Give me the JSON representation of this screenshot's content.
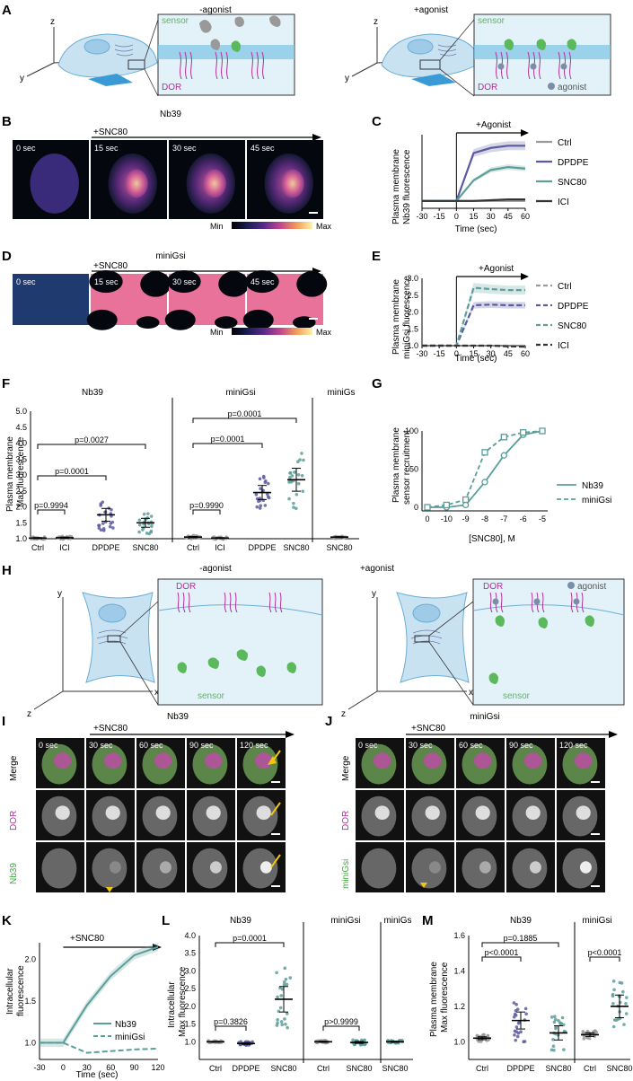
{
  "panel_letters": [
    "A",
    "B",
    "C",
    "D",
    "E",
    "F",
    "G",
    "H",
    "I",
    "J",
    "K",
    "L",
    "M"
  ],
  "colors": {
    "ctrl": "#9a9a9a",
    "dpdpe": "#5a5aa0",
    "snc80": "#5a9e9a",
    "ici": "#333333",
    "sensor_green": "#5cb85c",
    "dor_magenta": "#b0309a",
    "cell_blue": "#c8e2f2",
    "membrane_band": "#7cc3e6"
  },
  "A": {
    "left_title": "-agonist",
    "right_title": "+agonist",
    "sensor_label": "sensor",
    "dor_label": "DOR",
    "agonist_label": "agonist",
    "axis_z": "z",
    "axis_x": "x",
    "axis_y": "y"
  },
  "B": {
    "title": "Nb39",
    "treatment": "+SNC80",
    "times": [
      "0 sec",
      "15 sec",
      "30 sec",
      "45 sec"
    ],
    "scale_min": "Min",
    "scale_max": "Max"
  },
  "C": {
    "annotation": "+Agonist",
    "ylabel1": "Plasma membrane",
    "ylabel2": "Nb39 fluorescence",
    "xlabel": "Time (sec)",
    "xticks": [
      "-30",
      "-15",
      "0",
      "15",
      "30",
      "45",
      "60"
    ]
  },
  "D": {
    "title": "miniGsi",
    "treatment": "+SNC80",
    "times": [
      "0 sec",
      "15 sec",
      "30 sec",
      "45 sec"
    ],
    "scale_min": "Min",
    "scale_max": "Max"
  },
  "E": {
    "annotation": "+Agonist",
    "ylabel1": "Plasma membrane",
    "ylabel2": "miniGsi fluorescence",
    "xlabel": "Time (sec)",
    "xticks": [
      "-30",
      "-15",
      "0",
      "15",
      "30",
      "45",
      "60"
    ]
  },
  "F": {
    "ylabel1": "Plasma membrane",
    "ylabel2": "Max fluorescence",
    "groups": [
      "Nb39",
      "miniGsi",
      "miniGs"
    ],
    "pvalues": [
      "p=0.9994",
      "p=0.0001",
      "p=0.0027",
      "p=0.9990",
      "p=0.0001",
      "p=0.0001"
    ]
  },
  "G": {
    "ylabel1": "Plasma membrane",
    "ylabel2": "sensor recruitment",
    "xlabel": "[SNC80], M",
    "xticks": [
      "0",
      "-10",
      "-9",
      "-8",
      "-7",
      "-6",
      "-5"
    ]
  },
  "H": {
    "left_title": "-agonist",
    "right_title": "+agonist",
    "dor_label": "DOR",
    "sensor_label": "sensor",
    "agonist_label": "agonist",
    "axis_y": "y",
    "axis_x": "x",
    "axis_z": "z"
  },
  "I": {
    "title": "Nb39",
    "treatment": "+SNC80",
    "times": [
      "0 sec",
      "30 sec",
      "60 sec",
      "90 sec",
      "120 sec"
    ],
    "rows": [
      "Merge",
      "DOR",
      "Nb39"
    ]
  },
  "J": {
    "title": "miniGsi",
    "treatment": "+SNC80",
    "times": [
      "0 sec",
      "30 sec",
      "60 sec",
      "90 sec",
      "120 sec"
    ],
    "rows": [
      "Merge",
      "DOR",
      "miniGsi"
    ]
  },
  "K": {
    "treatment": "+SNC80",
    "ylabel1": "Intracellular",
    "ylabel2": "fluorescence",
    "xlabel": "Time (sec)",
    "xticks": [
      "-30",
      "0",
      "30",
      "60",
      "90",
      "120"
    ]
  },
  "L": {
    "ylabel1": "Intracellular",
    "ylabel2": "Max fluorescence",
    "groups": [
      "Nb39",
      "miniGsi",
      "miniGs"
    ],
    "pvalues": [
      "p=0.0001",
      "p=0.3826",
      "p>0.9999"
    ]
  },
  "M": {
    "ylabel1": "Plasma membrane",
    "ylabel2": "Max fluorescence",
    "groups": [
      "Nb39",
      "miniGsi"
    ],
    "pvalues": [
      "p=0.1885",
      "p<0.0001",
      "p<0.0001"
    ]
  },
  "chart_data": [
    {
      "panel": "C",
      "type": "line",
      "xlabel": "Time (sec)",
      "ylabel": "Plasma membrane Nb39 fluorescence",
      "xlim": [
        -30,
        60
      ],
      "x": [
        -30,
        -15,
        0,
        15,
        30,
        45,
        60
      ],
      "series": [
        {
          "name": "Ctrl",
          "values": [
            1.0,
            1.0,
            1.0,
            1.0,
            1.0,
            1.0,
            1.0
          ]
        },
        {
          "name": "DPDPE",
          "values": [
            1.0,
            1.0,
            1.0,
            1.65,
            1.72,
            1.75,
            1.75
          ]
        },
        {
          "name": "SNC80",
          "values": [
            1.0,
            1.0,
            1.0,
            1.28,
            1.42,
            1.46,
            1.44
          ]
        },
        {
          "name": "ICI",
          "values": [
            1.0,
            1.0,
            1.0,
            1.0,
            1.01,
            1.02,
            1.02
          ]
        }
      ]
    },
    {
      "panel": "E",
      "type": "line",
      "xlabel": "Time (sec)",
      "ylabel": "Plasma membrane miniGsi fluorescence",
      "xlim": [
        -30,
        60
      ],
      "ylim": [
        1.0,
        3.0
      ],
      "yticks": [
        "1.0",
        "1.5",
        "2.0",
        "2.5",
        "3.0"
      ],
      "x": [
        -30,
        -15,
        0,
        15,
        30,
        45,
        60
      ],
      "series": [
        {
          "name": "Ctrl",
          "values": [
            1.0,
            1.0,
            1.0,
            1.0,
            1.0,
            1.0,
            1.0
          ]
        },
        {
          "name": "DPDPE",
          "values": [
            1.0,
            1.0,
            1.0,
            2.2,
            2.22,
            2.2,
            2.2
          ]
        },
        {
          "name": "SNC80",
          "values": [
            1.0,
            1.0,
            1.0,
            2.72,
            2.68,
            2.65,
            2.65
          ]
        },
        {
          "name": "ICI",
          "values": [
            1.0,
            1.0,
            1.0,
            1.0,
            1.0,
            0.98,
            0.97
          ]
        }
      ]
    },
    {
      "panel": "F",
      "type": "scatter",
      "ylabel": "Plasma membrane Max fluorescence",
      "ylim": [
        1.0,
        5.0
      ],
      "yticks": [
        "1.0",
        "1.5",
        "2.0",
        "2.5",
        "3.0",
        "3.5",
        "4.0",
        "4.5",
        "5.0"
      ],
      "categories": [
        "Ctrl",
        "ICI",
        "DPDPE",
        "SNC80",
        "Ctrl",
        "ICI",
        "DPDPE",
        "SNC80",
        "SNC80"
      ],
      "means": [
        1.02,
        1.03,
        1.75,
        1.5,
        1.05,
        1.02,
        2.45,
        2.85,
        1.05
      ]
    },
    {
      "panel": "G",
      "type": "line",
      "xlabel": "[SNC80], M",
      "ylabel": "Plasma membrane sensor recruitment",
      "ylim": [
        0,
        100
      ],
      "yticks": [
        "0",
        "50",
        "100"
      ],
      "x": [
        0,
        -10,
        -9,
        -8,
        -7,
        -6,
        -5
      ],
      "series": [
        {
          "name": "Nb39",
          "values": [
            0,
            0,
            3,
            33,
            68,
            95,
            100
          ]
        },
        {
          "name": "miniGsi",
          "values": [
            0,
            3,
            10,
            72,
            92,
            98,
            100
          ]
        }
      ]
    },
    {
      "panel": "K",
      "type": "line",
      "xlabel": "Time (sec)",
      "ylabel": "Intracellular fluorescence",
      "xlim": [
        -30,
        120
      ],
      "ylim": [
        0.8,
        2.2
      ],
      "yticks": [
        "1.0",
        "1.5",
        "2.0"
      ],
      "x": [
        -30,
        0,
        30,
        60,
        90,
        120
      ],
      "series": [
        {
          "name": "Nb39",
          "values": [
            1.0,
            1.0,
            1.45,
            1.8,
            2.05,
            2.15
          ]
        },
        {
          "name": "miniGsi",
          "values": [
            1.0,
            1.0,
            0.88,
            0.9,
            0.92,
            0.93
          ]
        }
      ]
    },
    {
      "panel": "L",
      "type": "scatter",
      "ylabel": "Intracellular Max fluorescence",
      "ylim": [
        0.5,
        4.0
      ],
      "yticks": [
        "1.0",
        "1.5",
        "2.0",
        "2.5",
        "3.0",
        "3.5",
        "4.0"
      ],
      "categories": [
        "Ctrl",
        "DPDPE",
        "SNC80",
        "Ctrl",
        "SNC80",
        "SNC80"
      ],
      "means": [
        1.0,
        0.95,
        2.2,
        1.0,
        0.98,
        1.0
      ]
    },
    {
      "panel": "M",
      "type": "scatter",
      "ylabel": "Plasma membrane Max fluorescence",
      "ylim": [
        0.9,
        1.6
      ],
      "yticks": [
        "1.0",
        "1.2",
        "1.4",
        "1.6"
      ],
      "categories": [
        "Ctrl",
        "DPDPE",
        "SNC80",
        "Ctrl",
        "SNC80"
      ],
      "means": [
        1.02,
        1.12,
        1.05,
        1.04,
        1.2
      ]
    }
  ]
}
